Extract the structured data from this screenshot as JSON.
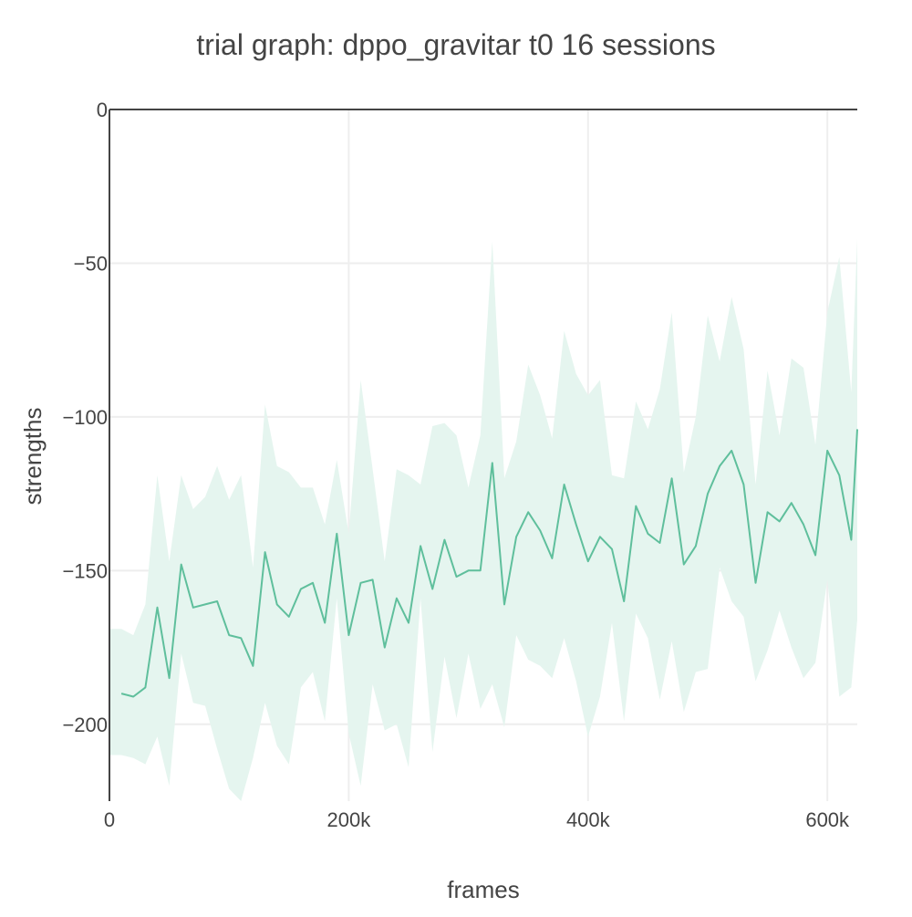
{
  "chart_data": {
    "type": "line",
    "title": "trial graph: dppo_gravitar t0 16 sessions",
    "xlabel": "frames",
    "ylabel": "strengths",
    "xlim": [
      0,
      625000
    ],
    "ylim": [
      -225,
      0
    ],
    "x_ticks": [
      0,
      200000,
      400000,
      600000
    ],
    "x_tick_labels": [
      "0",
      "200k",
      "400k",
      "600k"
    ],
    "y_ticks": [
      0,
      -50,
      -100,
      -150,
      -200
    ],
    "y_tick_labels": [
      "0",
      "−50",
      "−100",
      "−150",
      "−200"
    ],
    "grid": true,
    "legend": "none",
    "colors": {
      "line": "#5fbf9c",
      "band": "#e5f5ef",
      "grid": "#eeeeee",
      "axis": "#444444"
    },
    "x": [
      0,
      10000,
      20000,
      30000,
      40000,
      50000,
      60000,
      70000,
      80000,
      90000,
      100000,
      110000,
      120000,
      130000,
      140000,
      150000,
      160000,
      170000,
      180000,
      190000,
      200000,
      210000,
      220000,
      230000,
      240000,
      250000,
      260000,
      270000,
      280000,
      290000,
      300000,
      310000,
      320000,
      330000,
      340000,
      350000,
      360000,
      370000,
      380000,
      390000,
      400000,
      410000,
      420000,
      430000,
      440000,
      450000,
      460000,
      470000,
      480000,
      490000,
      500000,
      510000,
      520000,
      530000,
      540000,
      550000,
      560000,
      570000,
      580000,
      590000,
      600000,
      610000,
      620000,
      625000
    ],
    "series": [
      {
        "values": [
          null,
          -190,
          -191,
          -188,
          -162,
          -185,
          -148,
          -162,
          -161,
          -160,
          -171,
          -172,
          -181,
          -144,
          -161,
          -165,
          -156,
          -154,
          -167,
          -138,
          -171,
          -154,
          -153,
          -175,
          -159,
          -167,
          -142,
          -156,
          -140,
          -152,
          -150,
          -150,
          -115,
          -161,
          -139,
          -131,
          -137,
          -146,
          -122,
          -135,
          -147,
          -139,
          -143,
          -160,
          -129,
          -138,
          -141,
          -120,
          -148,
          -142,
          -125,
          -116,
          -111,
          -122,
          -154,
          -131,
          -134,
          -128,
          -135,
          -145,
          -111,
          -119,
          -140,
          -104
        ],
        "upper": [
          -169,
          -169,
          -171,
          -161,
          -119,
          -147,
          -119,
          -130,
          -126,
          -116,
          -127,
          -119,
          -149,
          -96,
          -116,
          -118,
          -123,
          -123,
          -135,
          -114,
          -138,
          -88,
          -117,
          -147,
          -117,
          -119,
          -122,
          -103,
          -102,
          -106,
          -123,
          -106,
          -43,
          -120,
          -108,
          -83,
          -93,
          -107,
          -72,
          -86,
          -93,
          -88,
          -119,
          -120,
          -95,
          -104,
          -91,
          -66,
          -118,
          -100,
          -67,
          -82,
          -61,
          -78,
          -122,
          -85,
          -106,
          -81,
          -84,
          -109,
          -66,
          -48,
          -92,
          -42
        ],
        "lower": [
          -210,
          -210,
          -211,
          -213,
          -204,
          -220,
          -177,
          -193,
          -194,
          -208,
          -221,
          -225,
          -211,
          -193,
          -207,
          -213,
          -188,
          -183,
          -199,
          -159,
          -203,
          -220,
          -187,
          -202,
          -200,
          -214,
          -159,
          -209,
          -178,
          -198,
          -177,
          -195,
          -187,
          -201,
          -171,
          -179,
          -181,
          -185,
          -172,
          -186,
          -204,
          -191,
          -167,
          -199,
          -164,
          -172,
          -192,
          -173,
          -196,
          -183,
          -182,
          -149,
          -160,
          -165,
          -186,
          -176,
          -163,
          -175,
          -185,
          -180,
          -153,
          -191,
          -188,
          -166
        ]
      }
    ]
  }
}
